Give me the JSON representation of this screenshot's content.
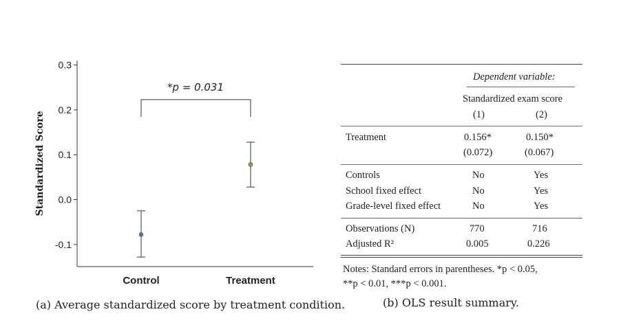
{
  "panel_a": {
    "caption": "(a) Average standardized score by treatment condition.",
    "significance_label": "*p = 0.031"
  },
  "chart_data": {
    "type": "scatter",
    "title": "",
    "xlabel": "",
    "ylabel": "Standardized Score",
    "categories": [
      "Control",
      "Treatment"
    ],
    "ylim": [
      -0.13,
      0.32
    ],
    "yticks": [
      -0.1,
      0.0,
      0.1,
      0.2,
      0.3
    ],
    "ytick_labels": [
      "-0.1",
      "0.0",
      "0.1",
      "0.2",
      "0.3"
    ],
    "series": [
      {
        "category": "Control",
        "value": -0.078,
        "ci_low": -0.128,
        "ci_high": -0.025,
        "color": "#4c72b0"
      },
      {
        "category": "Treatment",
        "value": 0.078,
        "ci_low": 0.028,
        "ci_high": 0.128,
        "color": "#a8884a"
      }
    ],
    "annotation": "*p = 0.031",
    "grid": false
  },
  "panel_b": {
    "caption": "(b) OLS result summary.",
    "header": {
      "dependent_variable": "Dependent variable:",
      "dv_name": "Standardized exam score",
      "col1": "(1)",
      "col2": "(2)"
    },
    "rows": {
      "treatment": {
        "label": "Treatment",
        "c1": "0.156*",
        "c2": "0.150*",
        "se1": "(0.072)",
        "se2": "(0.067)"
      },
      "controls": {
        "label": "Controls",
        "c1": "No",
        "c2": "Yes"
      },
      "school_fe": {
        "label": "School fixed effect",
        "c1": "No",
        "c2": "Yes"
      },
      "grade_fe": {
        "label": "Grade-level fixed effect",
        "c1": "No",
        "c2": "Yes"
      },
      "observations": {
        "label": "Observations (N)",
        "c1": "770",
        "c2": "716"
      },
      "adj_r2": {
        "label": "Adjusted R²",
        "c1": "0.005",
        "c2": "0.226"
      }
    },
    "notes": {
      "line1": "Notes: Standard errors in parentheses. *p < 0.05,",
      "line2": "**p < 0.01, ***p < 0.001."
    }
  }
}
